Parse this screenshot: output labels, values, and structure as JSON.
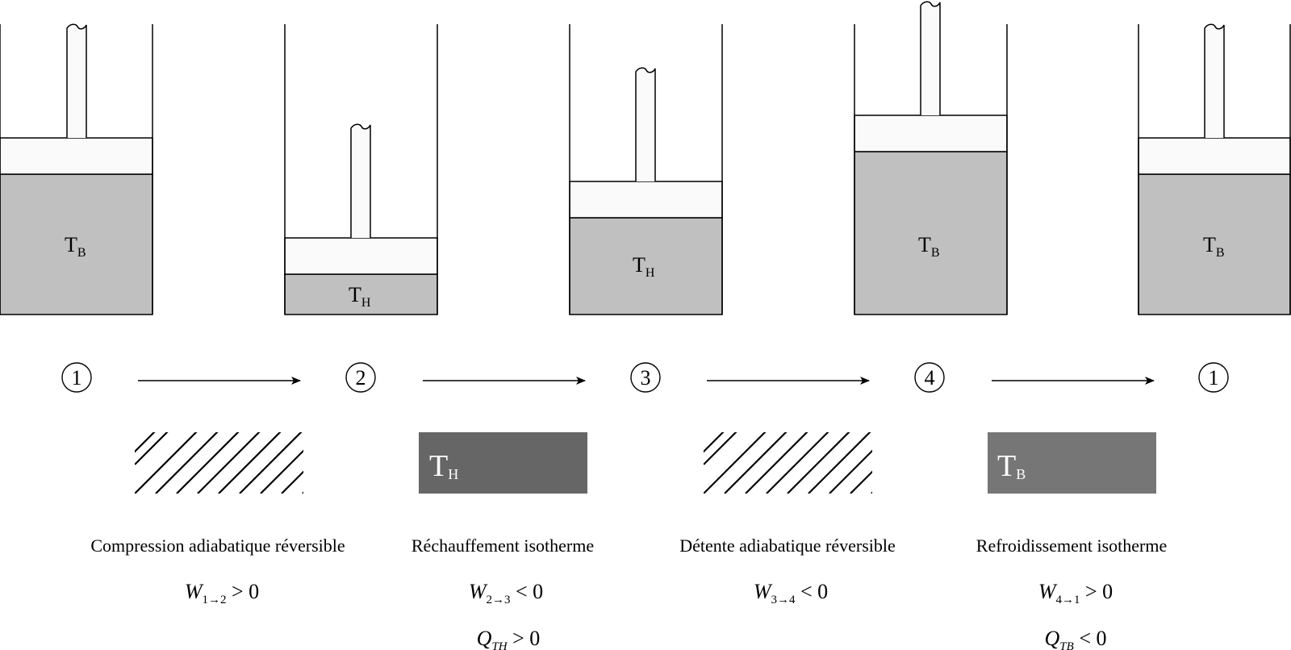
{
  "colors": {
    "gas": "#c0c0c0",
    "piston": "#fafafa",
    "stroke": "#000000",
    "reservoir_hot": "#666666",
    "reservoir_cold": "#767676",
    "reservoir_text": "#ffffff"
  },
  "cylinders": [
    {
      "temp_main": "T",
      "temp_sub": "B"
    },
    {
      "temp_main": "T",
      "temp_sub": "H"
    },
    {
      "temp_main": "T",
      "temp_sub": "H"
    },
    {
      "temp_main": "T",
      "temp_sub": "B"
    },
    {
      "temp_main": "T",
      "temp_sub": "B"
    }
  ],
  "states": [
    "1",
    "2",
    "3",
    "4",
    "1"
  ],
  "transformations": [
    {
      "reservoir": "adiabatic-hatch",
      "reservoir_main": "",
      "reservoir_sub": "",
      "label": "Compression adiabatique réversible",
      "work": {
        "sym": "W",
        "sub": "1→2",
        "rel": " > 0"
      },
      "heat": null
    },
    {
      "reservoir": "hot",
      "reservoir_main": "T",
      "reservoir_sub": "H",
      "label": "Réchauffement isotherme",
      "work": {
        "sym": "W",
        "sub": "2→3",
        "rel": " < 0"
      },
      "heat": {
        "sym": "Q",
        "sub": "TH",
        "rel": " > 0"
      }
    },
    {
      "reservoir": "adiabatic-hatch",
      "reservoir_main": "",
      "reservoir_sub": "",
      "label": "Détente adiabatique réversible",
      "work": {
        "sym": "W",
        "sub": "3→4",
        "rel": " < 0"
      },
      "heat": null
    },
    {
      "reservoir": "cold",
      "reservoir_main": "T",
      "reservoir_sub": "B",
      "label": "Refroidissement isotherme",
      "work": {
        "sym": "W",
        "sub": "4→1",
        "rel": " > 0"
      },
      "heat": {
        "sym": "Q",
        "sub": "TB",
        "rel": " < 0"
      }
    }
  ]
}
